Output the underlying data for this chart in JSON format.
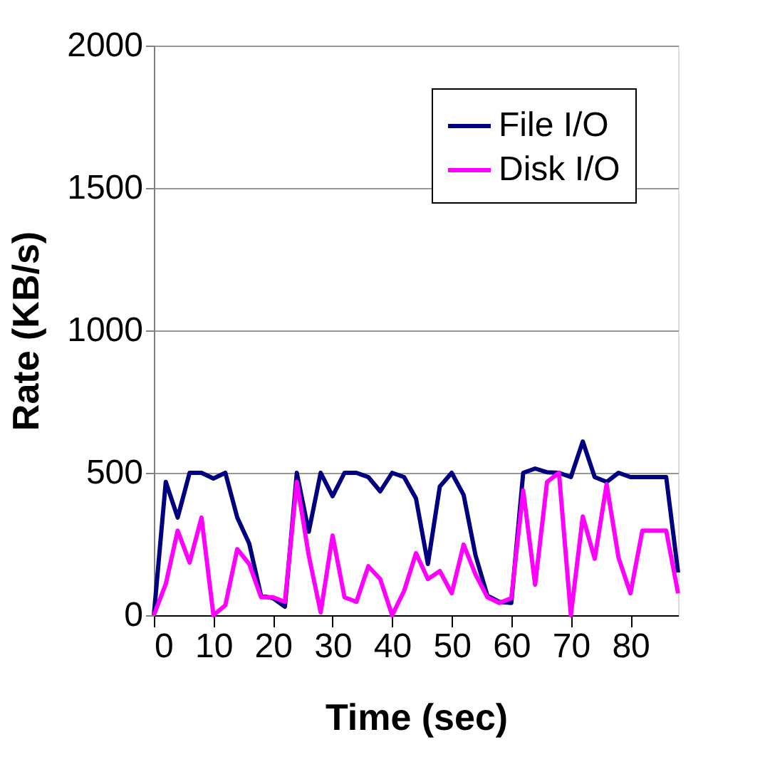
{
  "chart_data": {
    "type": "line",
    "xlabel": "Time (sec)",
    "ylabel": "Rate (KB/s)",
    "x": [
      0,
      2,
      4,
      6,
      8,
      10,
      12,
      14,
      16,
      18,
      20,
      22,
      24,
      26,
      28,
      30,
      32,
      34,
      36,
      38,
      40,
      42,
      44,
      46,
      48,
      50,
      52,
      54,
      56,
      58,
      60,
      62,
      64,
      66,
      68,
      70,
      72,
      74,
      76,
      78,
      80,
      82,
      84,
      86,
      88
    ],
    "series": [
      {
        "name": "File I/O",
        "color": "#000080",
        "values": [
          0,
          468,
          343,
          500,
          500,
          480,
          500,
          343,
          252,
          68,
          60,
          30,
          500,
          293,
          500,
          418,
          500,
          500,
          485,
          435,
          500,
          485,
          410,
          180,
          452,
          500,
          422,
          210,
          68,
          47,
          43,
          500,
          515,
          502,
          500,
          485,
          610,
          485,
          468,
          500,
          485,
          485,
          485,
          485,
          150
        ]
      },
      {
        "name": "Disk I/O",
        "color": "#ff00ff",
        "values": [
          0,
          110,
          297,
          185,
          343,
          0,
          35,
          232,
          180,
          63,
          63,
          47,
          468,
          210,
          10,
          280,
          63,
          47,
          172,
          127,
          0,
          85,
          218,
          127,
          155,
          77,
          248,
          143,
          63,
          43,
          60,
          438,
          107,
          468,
          500,
          0,
          347,
          198,
          460,
          202,
          77,
          297,
          297,
          297,
          77
        ]
      }
    ],
    "xlim": [
      0,
      88
    ],
    "xticks": [
      0,
      10,
      20,
      30,
      40,
      50,
      60,
      70,
      80
    ],
    "ylim": [
      0,
      2000
    ],
    "yticks": [
      0,
      500,
      1000,
      1500,
      2000
    ],
    "grid": "y",
    "legend": "top right",
    "marker": "none",
    "line_style": "solid"
  }
}
